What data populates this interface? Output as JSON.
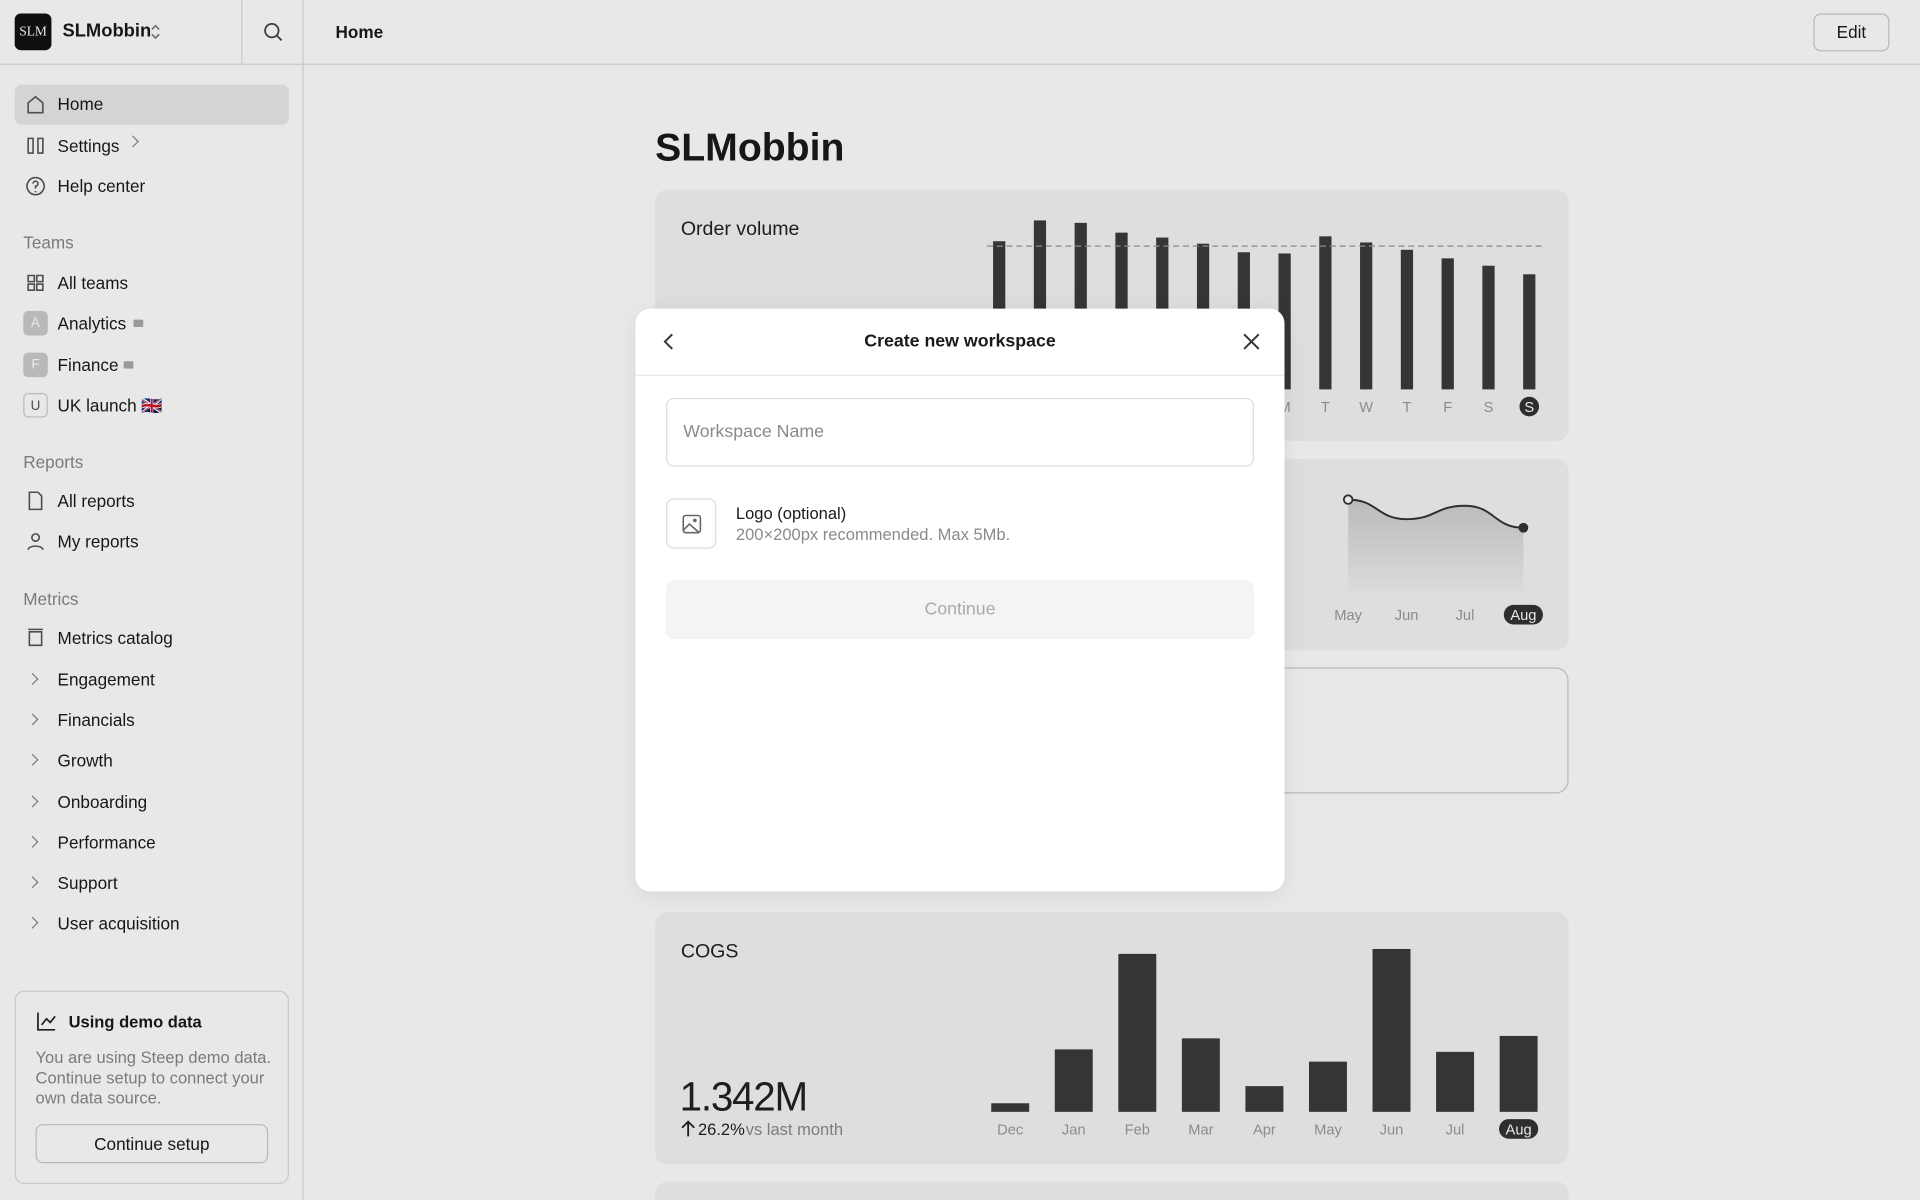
{
  "sidebar": {
    "logo": "SLM",
    "workspace": "SLMobbin",
    "nav": [
      "Home",
      "Settings",
      "Help center"
    ],
    "teams": {
      "title": "Teams",
      "items": [
        {
          "label": "All teams"
        },
        {
          "avatar": "A",
          "label": "Analytics"
        },
        {
          "avatar": "F",
          "label": "Finance"
        },
        {
          "avatar": "U",
          "label": "UK launch 🇬🇧"
        }
      ]
    },
    "reports": {
      "title": "Reports",
      "items": [
        "All reports",
        "My reports"
      ]
    },
    "metrics": {
      "title": "Metrics",
      "catalog": "Metrics catalog",
      "groups": [
        "Engagement",
        "Financials",
        "Growth",
        "Onboarding",
        "Performance",
        "Support",
        "User acquisition"
      ]
    },
    "demo": {
      "title": "Using demo data",
      "text": "You are using Steep demo data. Continue setup to connect your own data source.",
      "button": "Continue setup"
    }
  },
  "topbar": {
    "breadcrumb": "Home",
    "edit": "Edit"
  },
  "page": {
    "title": "SLMobbin",
    "order_volume": {
      "title": "Order volume",
      "categories": [
        null,
        null,
        null,
        null,
        null,
        null,
        null,
        "M",
        "T",
        "W",
        "T",
        "F",
        "S",
        "S"
      ],
      "values": [
        121,
        138,
        136,
        128,
        124,
        119,
        112,
        111,
        125,
        120,
        114,
        107,
        101,
        94
      ],
      "reference": 117
    },
    "trend": {
      "categories": [
        "May",
        "Jun",
        "Jul",
        "Aug"
      ],
      "values": [
        82,
        66,
        77,
        59
      ]
    },
    "cogs": {
      "title": "COGS",
      "value": "1.342M",
      "change": "26.2%",
      "change_note": "vs last month",
      "categories": [
        "Dec",
        "Jan",
        "Feb",
        "Mar",
        "Apr",
        "May",
        "Jun",
        "Jul",
        "Aug"
      ],
      "values": [
        7,
        51,
        129,
        60,
        21,
        41,
        133,
        49,
        62
      ]
    }
  },
  "modal": {
    "title": "Create new workspace",
    "placeholder": "Workspace Name",
    "logo_title": "Logo (optional)",
    "logo_hint": "200×200px recommended. Max 5Mb.",
    "continue": "Continue"
  }
}
